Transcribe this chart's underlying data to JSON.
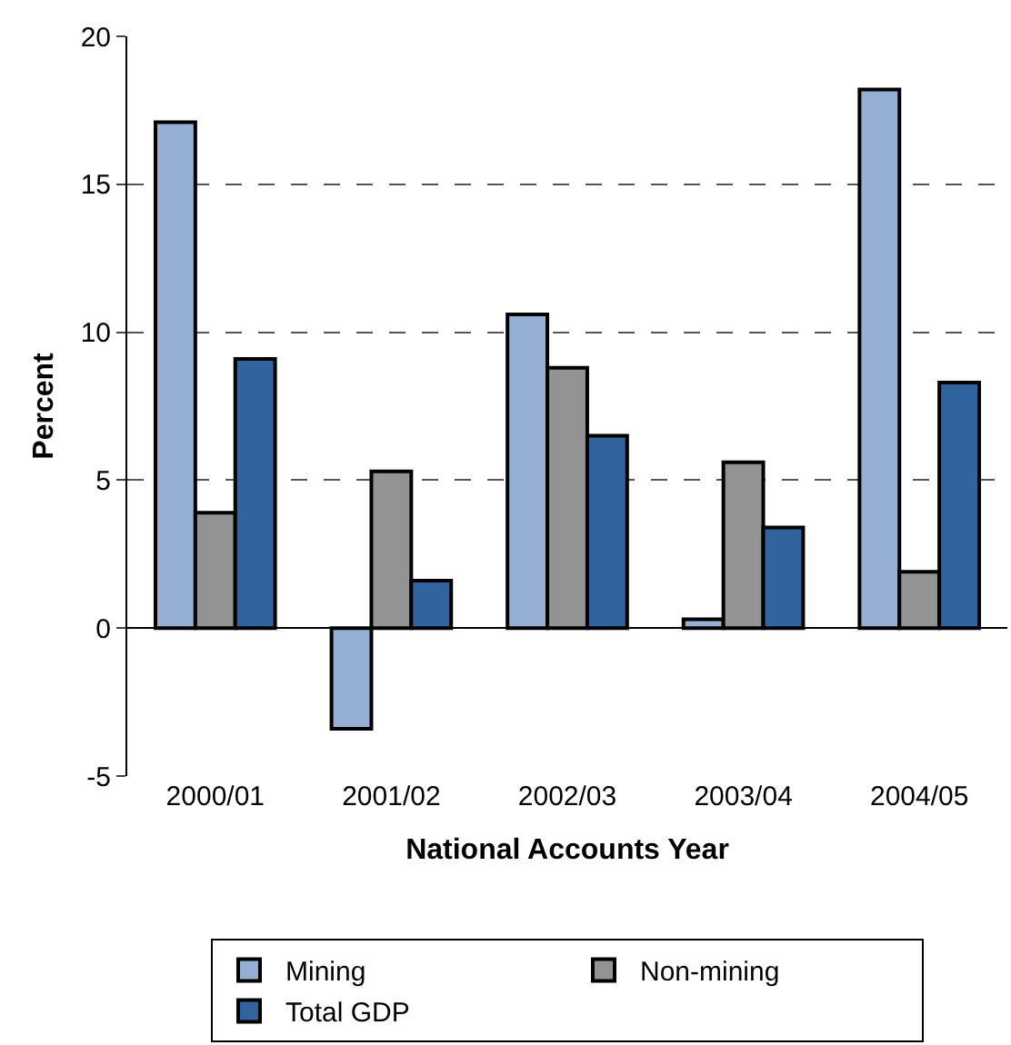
{
  "chart_data": {
    "type": "bar",
    "xlabel": "National Accounts Year",
    "ylabel": "Percent",
    "categories": [
      "2000/01",
      "2001/02",
      "2002/03",
      "2003/04",
      "2004/05"
    ],
    "series": [
      {
        "name": "Mining",
        "color": "#95b0d4",
        "values": [
          17.1,
          -3.4,
          10.6,
          0.3,
          18.2
        ]
      },
      {
        "name": "Non-mining",
        "color": "#939393",
        "values": [
          3.9,
          5.3,
          8.8,
          5.6,
          1.9
        ]
      },
      {
        "name": "Total GDP",
        "color": "#31649e",
        "values": [
          9.1,
          1.6,
          6.5,
          3.4,
          8.3
        ]
      }
    ],
    "ylim": [
      -5,
      20
    ],
    "yticks": [
      -5,
      0,
      5,
      10,
      15,
      20
    ],
    "grid": "y",
    "legend": "bottom"
  }
}
